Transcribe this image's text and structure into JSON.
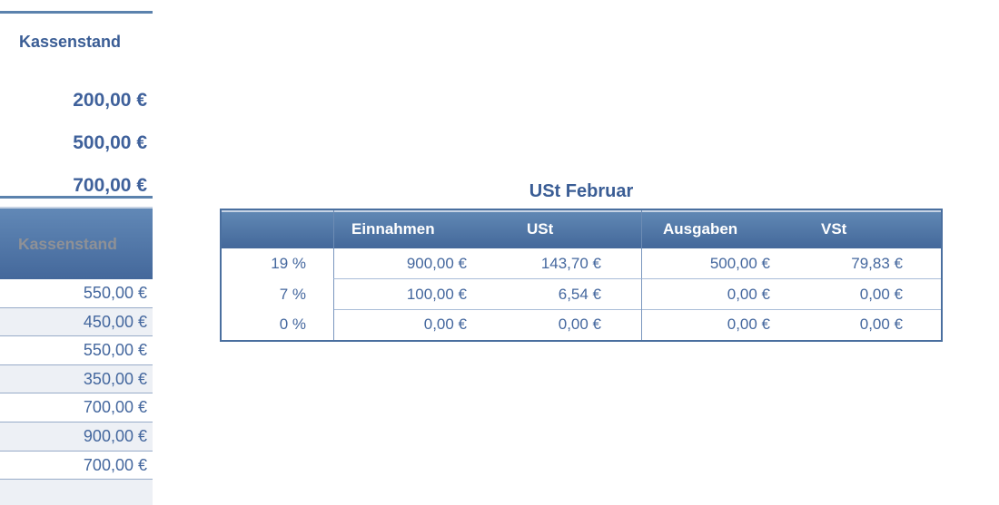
{
  "left_panel": {
    "top_table": {
      "title": "Kassenstand",
      "values": [
        "200,00 €",
        "500,00 €",
        "700,00 €"
      ]
    },
    "bottom_table": {
      "header": "Kassenstand",
      "values": [
        "550,00 €",
        "450,00 €",
        "550,00 €",
        "350,00 €",
        "700,00 €",
        "900,00 €",
        "700,00 €"
      ]
    }
  },
  "ust_table": {
    "title": "USt Februar",
    "columns": [
      "",
      "Einnahmen",
      "USt",
      "Ausgaben",
      "VSt"
    ],
    "rows": [
      {
        "rate": "19 %",
        "einnahmen": "900,00 €",
        "ust": "143,70 €",
        "ausgaben": "500,00 €",
        "vst": "79,83 €"
      },
      {
        "rate": "7 %",
        "einnahmen": "100,00 €",
        "ust": "6,54 €",
        "ausgaben": "0,00 €",
        "vst": "0,00 €"
      },
      {
        "rate": "0 %",
        "einnahmen": "0,00 €",
        "ust": "0,00 €",
        "ausgaben": "0,00 €",
        "vst": "0,00 €"
      }
    ]
  },
  "colors": {
    "accent_line": "#5b82ad",
    "header_gradient_top": "#6189b5",
    "header_gradient_bottom": "#44689a",
    "header_text": "#ffffff",
    "muted_header_text": "#8f9196",
    "value_text": "#44679e",
    "bold_value_text": "#3f619b",
    "alt_row_bg": "#edf0f5",
    "row_separator": "#97abc8",
    "table_border": "#4a6f9f",
    "inner_line": "#aabdd8"
  }
}
